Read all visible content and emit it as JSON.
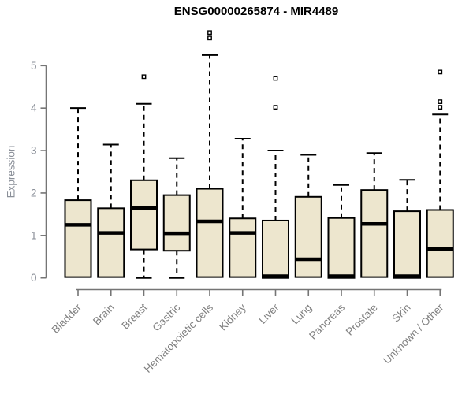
{
  "header": {
    "title": "ENSG00000265874 - MIR4489"
  },
  "chart_data": {
    "type": "boxplot",
    "title": "ENSG00000265874 - MIR4489",
    "xlabel": "",
    "ylabel": "Expression",
    "ylim": [
      0,
      5.9
    ],
    "yticks": [
      0,
      1,
      2,
      3,
      4,
      5
    ],
    "grid": false,
    "legend_position": "none",
    "categories": [
      "Bladder",
      "Brain",
      "Breast",
      "Gastric",
      "Hematopoietic cells",
      "Kidney",
      "Liver",
      "Lung",
      "Pancreas",
      "Prostate",
      "Skin",
      "Unknown / Other"
    ],
    "boxes": [
      {
        "category": "Bladder",
        "min": 0,
        "q1": 0.02,
        "median": 1.25,
        "q3": 1.83,
        "max": 4.0,
        "outliers": []
      },
      {
        "category": "Brain",
        "min": 0,
        "q1": 0.02,
        "median": 1.06,
        "q3": 1.64,
        "max": 3.14,
        "outliers": []
      },
      {
        "category": "Breast",
        "min": 0,
        "q1": 0.67,
        "median": 1.65,
        "q3": 2.3,
        "max": 4.1,
        "outliers": [
          4.74
        ]
      },
      {
        "category": "Gastric",
        "min": 0,
        "q1": 0.64,
        "median": 1.05,
        "q3": 1.95,
        "max": 2.82,
        "outliers": []
      },
      {
        "category": "Hematopoietic cells",
        "min": 0,
        "q1": 0.02,
        "median": 1.33,
        "q3": 2.1,
        "max": 5.25,
        "outliers": [
          5.65,
          5.78
        ]
      },
      {
        "category": "Kidney",
        "min": 0,
        "q1": 0.02,
        "median": 1.06,
        "q3": 1.4,
        "max": 3.28,
        "outliers": []
      },
      {
        "category": "Liver",
        "min": 0,
        "q1": 0.0,
        "median": 0.04,
        "q3": 1.35,
        "max": 3.0,
        "outliers": [
          4.02,
          4.7
        ]
      },
      {
        "category": "Lung",
        "min": 0,
        "q1": 0.02,
        "median": 0.44,
        "q3": 1.91,
        "max": 2.9,
        "outliers": []
      },
      {
        "category": "Pancreas",
        "min": 0,
        "q1": 0.0,
        "median": 0.04,
        "q3": 1.41,
        "max": 2.19,
        "outliers": []
      },
      {
        "category": "Prostate",
        "min": 0,
        "q1": 0.02,
        "median": 1.27,
        "q3": 2.07,
        "max": 2.94,
        "outliers": []
      },
      {
        "category": "Skin",
        "min": 0,
        "q1": 0.0,
        "median": 0.04,
        "q3": 1.57,
        "max": 2.31,
        "outliers": []
      },
      {
        "category": "Unknown / Other",
        "min": 0,
        "q1": 0.02,
        "median": 0.68,
        "q3": 1.6,
        "max": 3.85,
        "outliers": [
          4.02,
          4.15,
          4.85
        ]
      }
    ],
    "colors": {
      "box_fill": "#EDE6CE",
      "box_border": "#000000",
      "median": "#000000",
      "whisker": "#000000",
      "outlier_stroke": "#000000",
      "outlier_fill": "#ffffff",
      "axis": "#757575",
      "tick_label": "#8a8f98",
      "category_label": "#808080",
      "title": "#000000"
    }
  }
}
